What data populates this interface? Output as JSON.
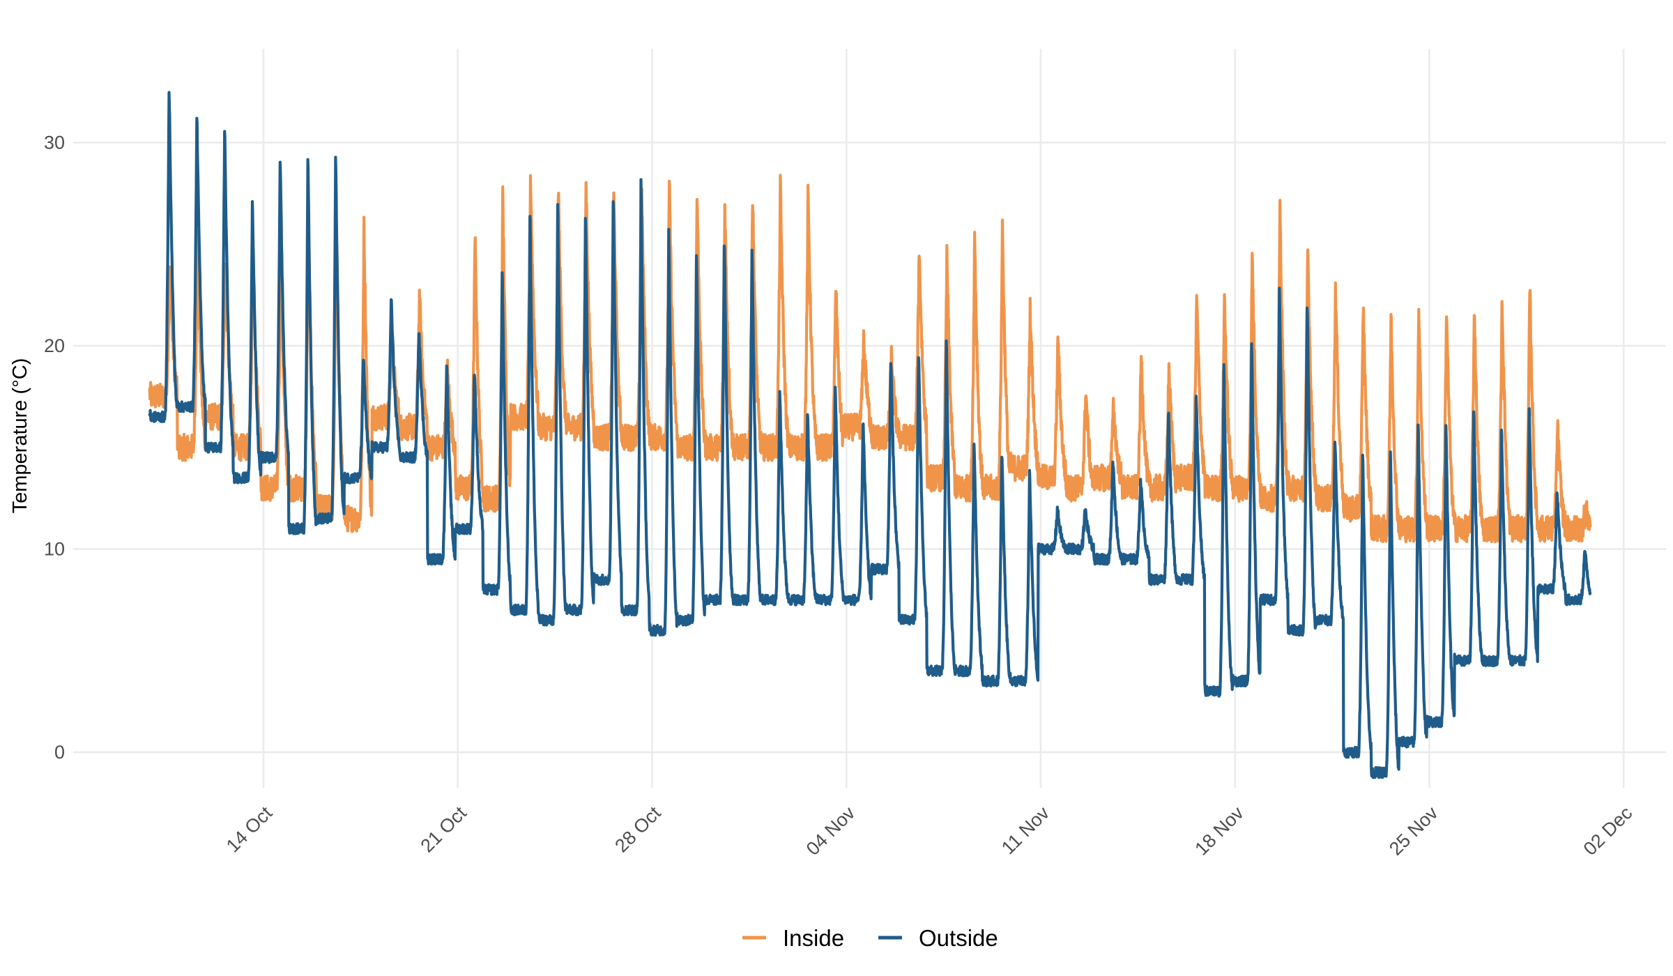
{
  "chart_data": {
    "type": "line",
    "title": "",
    "xlabel": "",
    "ylabel": "Temperature (°C)",
    "x_unit": "day index (0 = 09 Oct)",
    "xlim": [
      6.4,
      59.0
    ],
    "ylim": [
      -1.2,
      33.5
    ],
    "x_ticks": [
      {
        "day": 11,
        "label": "14 Oct"
      },
      {
        "day": 18,
        "label": "21 Oct"
      },
      {
        "day": 25,
        "label": "28 Oct"
      },
      {
        "day": 32,
        "label": "04 Nov"
      },
      {
        "day": 39,
        "label": "11 Nov"
      },
      {
        "day": 46,
        "label": "18 Nov"
      },
      {
        "day": 53,
        "label": "25 Nov"
      },
      {
        "day": 60,
        "label": "02 Dec"
      }
    ],
    "y_ticks": [
      0,
      10,
      20,
      30
    ],
    "legend": {
      "position": "bottom",
      "orientation": "horizontal"
    },
    "series": [
      {
        "name": "Inside",
        "color": "#F0944A",
        "daily_pattern": {
          "start_day": 6.9,
          "end_day": 58.8,
          "min_temp": [
            17.5,
            15.0,
            16.5,
            15.0,
            13.0,
            13.0,
            12.0,
            11.5,
            16.5,
            16.0,
            15.0,
            13.0,
            12.5,
            16.5,
            16.0,
            16.0,
            15.5,
            15.5,
            15.5,
            15.0,
            15.0,
            15.0,
            15.0,
            15.0,
            15.0,
            16.0,
            15.5,
            15.5,
            13.5,
            13.0,
            13.0,
            14.0,
            13.5,
            13.0,
            13.5,
            13.0,
            13.0,
            13.5,
            13.0,
            13.0,
            12.5,
            13.0,
            12.5,
            12.0,
            11.0,
            11.0,
            11.0,
            11.0,
            11.0,
            11.0,
            11.0,
            11.0
          ],
          "max_temp": [
            24.0,
            25.5,
            24.5,
            25.0,
            25.0,
            26.0,
            26.5,
            26.0,
            20.5,
            22.5,
            19.0,
            25.5,
            27.5,
            28.5,
            28.0,
            28.0,
            27.5,
            28.0,
            28.0,
            27.5,
            27.0,
            27.5,
            28.0,
            27.5,
            23.0,
            20.5,
            19.5,
            25.0,
            24.5,
            25.5,
            26.0,
            22.0,
            20.5,
            18.0,
            17.0,
            19.5,
            19.0,
            22.5,
            22.5,
            24.5,
            27.0,
            25.0,
            23.0,
            22.0,
            21.5,
            22.0,
            22.0,
            22.0,
            22.5,
            23.0,
            16.0,
            12.0
          ]
        }
      },
      {
        "name": "Outside",
        "color": "#1F5C8A",
        "daily_pattern": {
          "start_day": 6.9,
          "end_day": 58.8,
          "min_temp": [
            16.5,
            17.0,
            15.0,
            13.5,
            14.5,
            11.0,
            11.5,
            13.5,
            15.0,
            14.5,
            9.5,
            11.0,
            8.0,
            7.0,
            6.5,
            7.0,
            8.5,
            7.0,
            6.0,
            6.5,
            7.5,
            7.5,
            7.5,
            7.5,
            7.5,
            7.5,
            9.0,
            6.5,
            4.0,
            4.0,
            3.5,
            3.5,
            10.0,
            10.0,
            9.5,
            9.5,
            8.5,
            8.5,
            3.0,
            3.5,
            7.5,
            6.0,
            6.5,
            0.0,
            -1.0,
            0.5,
            1.5,
            4.5,
            4.5,
            4.5,
            8.0,
            7.5
          ],
          "max_temp": [
            33.0,
            31.5,
            31.0,
            27.5,
            29.5,
            29.5,
            29.5,
            19.5,
            22.5,
            21.0,
            19.5,
            19.0,
            24.0,
            27.0,
            27.5,
            27.0,
            27.5,
            28.5,
            26.0,
            25.0,
            25.5,
            25.0,
            18.0,
            17.0,
            18.0,
            16.5,
            19.5,
            20.0,
            20.5,
            15.5,
            15.0,
            14.0,
            12.0,
            12.0,
            14.5,
            13.5,
            17.0,
            17.5,
            19.5,
            20.5,
            23.0,
            22.5,
            15.5,
            15.0,
            15.0,
            16.5,
            16.5,
            17.0,
            16.0,
            17.0,
            13.0,
            10.0
          ]
        }
      }
    ]
  }
}
